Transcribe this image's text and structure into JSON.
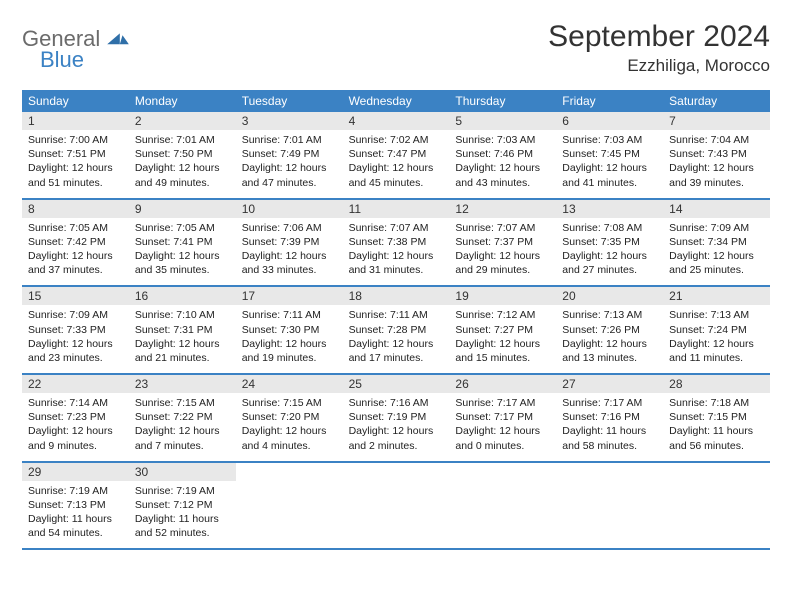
{
  "logo": {
    "general": "General",
    "blue": "Blue"
  },
  "title": "September 2024",
  "location": "Ezzhiliga, Morocco",
  "colors": {
    "header_bg": "#3b82c4",
    "daynum_bg": "#e8e8e8",
    "text": "#222222",
    "logo_gray": "#6b6b6b",
    "logo_blue": "#3b82c4"
  },
  "daynames": [
    "Sunday",
    "Monday",
    "Tuesday",
    "Wednesday",
    "Thursday",
    "Friday",
    "Saturday"
  ],
  "weeks": [
    [
      {
        "n": "1",
        "sunrise": "7:00 AM",
        "sunset": "7:51 PM",
        "dh": "12",
        "dm": "51"
      },
      {
        "n": "2",
        "sunrise": "7:01 AM",
        "sunset": "7:50 PM",
        "dh": "12",
        "dm": "49"
      },
      {
        "n": "3",
        "sunrise": "7:01 AM",
        "sunset": "7:49 PM",
        "dh": "12",
        "dm": "47"
      },
      {
        "n": "4",
        "sunrise": "7:02 AM",
        "sunset": "7:47 PM",
        "dh": "12",
        "dm": "45"
      },
      {
        "n": "5",
        "sunrise": "7:03 AM",
        "sunset": "7:46 PM",
        "dh": "12",
        "dm": "43"
      },
      {
        "n": "6",
        "sunrise": "7:03 AM",
        "sunset": "7:45 PM",
        "dh": "12",
        "dm": "41"
      },
      {
        "n": "7",
        "sunrise": "7:04 AM",
        "sunset": "7:43 PM",
        "dh": "12",
        "dm": "39"
      }
    ],
    [
      {
        "n": "8",
        "sunrise": "7:05 AM",
        "sunset": "7:42 PM",
        "dh": "12",
        "dm": "37"
      },
      {
        "n": "9",
        "sunrise": "7:05 AM",
        "sunset": "7:41 PM",
        "dh": "12",
        "dm": "35"
      },
      {
        "n": "10",
        "sunrise": "7:06 AM",
        "sunset": "7:39 PM",
        "dh": "12",
        "dm": "33"
      },
      {
        "n": "11",
        "sunrise": "7:07 AM",
        "sunset": "7:38 PM",
        "dh": "12",
        "dm": "31"
      },
      {
        "n": "12",
        "sunrise": "7:07 AM",
        "sunset": "7:37 PM",
        "dh": "12",
        "dm": "29"
      },
      {
        "n": "13",
        "sunrise": "7:08 AM",
        "sunset": "7:35 PM",
        "dh": "12",
        "dm": "27"
      },
      {
        "n": "14",
        "sunrise": "7:09 AM",
        "sunset": "7:34 PM",
        "dh": "12",
        "dm": "25"
      }
    ],
    [
      {
        "n": "15",
        "sunrise": "7:09 AM",
        "sunset": "7:33 PM",
        "dh": "12",
        "dm": "23"
      },
      {
        "n": "16",
        "sunrise": "7:10 AM",
        "sunset": "7:31 PM",
        "dh": "12",
        "dm": "21"
      },
      {
        "n": "17",
        "sunrise": "7:11 AM",
        "sunset": "7:30 PM",
        "dh": "12",
        "dm": "19"
      },
      {
        "n": "18",
        "sunrise": "7:11 AM",
        "sunset": "7:28 PM",
        "dh": "12",
        "dm": "17"
      },
      {
        "n": "19",
        "sunrise": "7:12 AM",
        "sunset": "7:27 PM",
        "dh": "12",
        "dm": "15"
      },
      {
        "n": "20",
        "sunrise": "7:13 AM",
        "sunset": "7:26 PM",
        "dh": "12",
        "dm": "13"
      },
      {
        "n": "21",
        "sunrise": "7:13 AM",
        "sunset": "7:24 PM",
        "dh": "12",
        "dm": "11"
      }
    ],
    [
      {
        "n": "22",
        "sunrise": "7:14 AM",
        "sunset": "7:23 PM",
        "dh": "12",
        "dm": "9"
      },
      {
        "n": "23",
        "sunrise": "7:15 AM",
        "sunset": "7:22 PM",
        "dh": "12",
        "dm": "7"
      },
      {
        "n": "24",
        "sunrise": "7:15 AM",
        "sunset": "7:20 PM",
        "dh": "12",
        "dm": "4"
      },
      {
        "n": "25",
        "sunrise": "7:16 AM",
        "sunset": "7:19 PM",
        "dh": "12",
        "dm": "2"
      },
      {
        "n": "26",
        "sunrise": "7:17 AM",
        "sunset": "7:17 PM",
        "dh": "12",
        "dm": "0"
      },
      {
        "n": "27",
        "sunrise": "7:17 AM",
        "sunset": "7:16 PM",
        "dh": "11",
        "dm": "58"
      },
      {
        "n": "28",
        "sunrise": "7:18 AM",
        "sunset": "7:15 PM",
        "dh": "11",
        "dm": "56"
      }
    ],
    [
      {
        "n": "29",
        "sunrise": "7:19 AM",
        "sunset": "7:13 PM",
        "dh": "11",
        "dm": "54"
      },
      {
        "n": "30",
        "sunrise": "7:19 AM",
        "sunset": "7:12 PM",
        "dh": "11",
        "dm": "52"
      },
      null,
      null,
      null,
      null,
      null
    ]
  ],
  "labels": {
    "sunrise": "Sunrise:",
    "sunset": "Sunset:",
    "daylight_prefix": "Daylight:",
    "hours_word": "hours",
    "and_word": "and",
    "minutes_word": "minutes."
  }
}
